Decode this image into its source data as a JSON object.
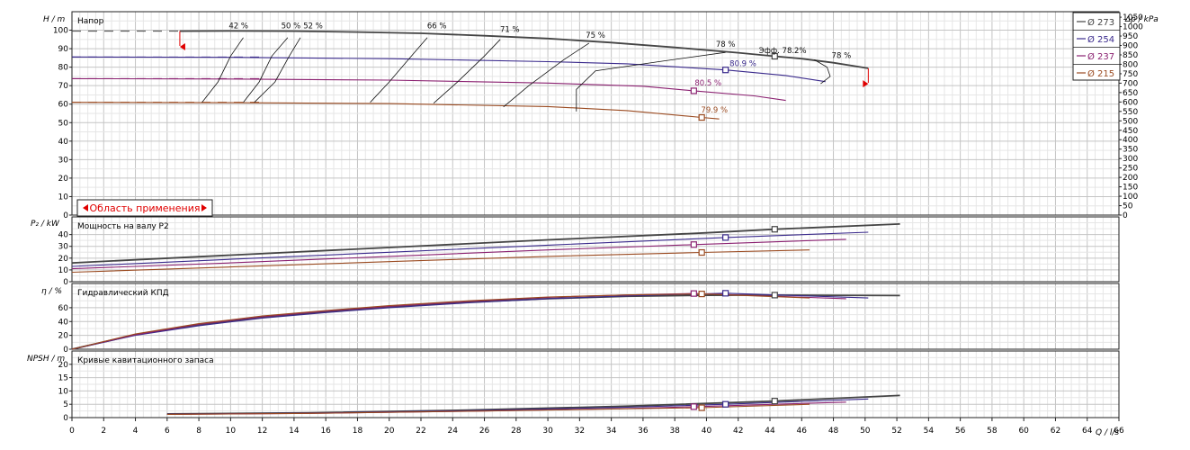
{
  "chart_data": [
    {
      "type": "line",
      "title": "Напор",
      "ylabel": "H / m",
      "ylabel_right": "Δp / kPa",
      "xlabel": "Q / l/s",
      "xlim": [
        0,
        66
      ],
      "ylim": [
        0,
        110
      ],
      "yticks": [
        0,
        10,
        20,
        30,
        40,
        50,
        60,
        70,
        80,
        90,
        100
      ],
      "yticks_right": [
        0,
        50,
        100,
        150,
        200,
        250,
        300,
        350,
        400,
        450,
        500,
        550,
        600,
        650,
        700,
        750,
        800,
        850,
        900,
        950,
        1000,
        1050
      ],
      "grid": true,
      "legend_position": "top-right",
      "series": [
        {
          "name": "Ø 273",
          "color": "#444444",
          "x": [
            6.8,
            10,
            14,
            18,
            22,
            26,
            30,
            34,
            38,
            42,
            44.3,
            46,
            48,
            50.2
          ],
          "y": [
            99.5,
            99.6,
            99.5,
            99,
            98.3,
            97,
            95.5,
            93.3,
            90.7,
            87.8,
            85.9,
            84.6,
            82.4,
            79.4
          ]
        },
        {
          "name": "Ø 254",
          "color": "#3a2a8c",
          "x": [
            0,
            10,
            20,
            30,
            35,
            41.2,
            45,
            47.5
          ],
          "y": [
            85.5,
            85.3,
            84.6,
            83,
            81.8,
            78.5,
            75.5,
            72.2
          ]
        },
        {
          "name": "Ø 237",
          "color": "#8a2070",
          "x": [
            0,
            10,
            20,
            30,
            36,
            39.2,
            43,
            45
          ],
          "y": [
            73.8,
            73.6,
            73,
            71.4,
            69.7,
            67.2,
            64.5,
            62
          ]
        },
        {
          "name": "Ø 215",
          "color": "#9a4a20",
          "x": [
            0,
            10,
            20,
            30,
            35,
            39.7,
            40.8
          ],
          "y": [
            61,
            60.8,
            60.3,
            58.7,
            56.5,
            52.8,
            52
          ]
        }
      ],
      "iso_efficiency_labels": [
        "42 %",
        "50 %",
        "52 %",
        "66 %",
        "71 %",
        "75 %",
        "78 %",
        "Эфф. 78.2%",
        "78 %"
      ],
      "curve_point_labels": [
        "80.9 %",
        "80.5 %",
        "79.9 %"
      ],
      "range_label": "Область применения"
    },
    {
      "type": "line",
      "title": "Мощность на валу P2",
      "ylabel": "P₂ / kW",
      "xlim": [
        0,
        66
      ],
      "ylim": [
        0,
        55
      ],
      "yticks": [
        0,
        10,
        20,
        30,
        40
      ],
      "series": [
        {
          "name": "Ø 273",
          "color": "#444444",
          "x": [
            0,
            10,
            20,
            30,
            40,
            44.3,
            52.2
          ],
          "y": [
            16,
            22.5,
            29,
            35.5,
            41.5,
            44.5,
            49
          ]
        },
        {
          "name": "Ø 254",
          "color": "#3a2a8c",
          "x": [
            0,
            10,
            20,
            30,
            41.2,
            50.2
          ],
          "y": [
            13,
            19,
            25,
            31,
            37.5,
            42
          ]
        },
        {
          "name": "Ø 237",
          "color": "#8a2070",
          "x": [
            0,
            10,
            20,
            30,
            39.2,
            48.8
          ],
          "y": [
            11,
            16,
            21.5,
            27,
            31.5,
            36
          ]
        },
        {
          "name": "Ø 215",
          "color": "#9a4a20",
          "x": [
            0,
            10,
            20,
            30,
            39.7,
            46.5
          ],
          "y": [
            8,
            12.5,
            17,
            21.5,
            24.8,
            27
          ]
        }
      ]
    },
    {
      "type": "line",
      "title": "Гидравлический КПД",
      "ylabel": "η / %",
      "xlim": [
        0,
        66
      ],
      "ylim": [
        0,
        95
      ],
      "yticks": [
        0,
        20,
        40,
        60
      ],
      "series": [
        {
          "name": "Ø 273",
          "color": "#444444",
          "x": [
            0,
            4,
            8,
            12,
            16,
            20,
            25,
            30,
            35,
            40,
            44.3,
            52.2
          ],
          "y": [
            0,
            21,
            35,
            46,
            54,
            61,
            68,
            73,
            76.5,
            78,
            78.2,
            77.5
          ]
        },
        {
          "name": "Ø 254",
          "color": "#3a2a8c",
          "x": [
            0,
            4,
            8,
            12,
            16,
            20,
            25,
            30,
            35,
            41.2,
            50.2
          ],
          "y": [
            0,
            20,
            34,
            45,
            53,
            60,
            67,
            73,
            77,
            80.9,
            74
          ]
        },
        {
          "name": "Ø 237",
          "color": "#8a2070",
          "x": [
            0,
            4,
            8,
            12,
            16,
            20,
            25,
            30,
            35,
            39.2,
            48.8
          ],
          "y": [
            0,
            21,
            36,
            47,
            55,
            62,
            69,
            75,
            78.5,
            80.5,
            73
          ]
        },
        {
          "name": "Ø 215",
          "color": "#9a4a20",
          "x": [
            0,
            4,
            8,
            12,
            16,
            20,
            25,
            30,
            35,
            39.7,
            46.5
          ],
          "y": [
            0,
            22,
            37,
            48,
            56,
            63,
            70,
            75.5,
            78.5,
            79.9,
            74
          ]
        }
      ]
    },
    {
      "type": "line",
      "title": "Кривые кавитационного запаса",
      "ylabel": "NPSH / m",
      "xlabel": "Q / l/s",
      "xlim": [
        0,
        66
      ],
      "ylim": [
        0,
        25
      ],
      "yticks": [
        0,
        5,
        10,
        15,
        20
      ],
      "xticks": [
        0,
        2,
        4,
        6,
        8,
        10,
        12,
        14,
        16,
        18,
        20,
        22,
        24,
        26,
        28,
        30,
        32,
        34,
        36,
        38,
        40,
        42,
        44,
        46,
        48,
        50,
        52,
        54,
        56,
        58,
        60,
        62,
        64,
        66
      ],
      "series": [
        {
          "name": "Ø 273",
          "color": "#444444",
          "x": [
            6,
            15,
            25,
            35,
            44.3,
            52.2
          ],
          "y": [
            1.4,
            1.8,
            2.8,
            4.3,
            6.2,
            8.3
          ]
        },
        {
          "name": "Ø 254",
          "color": "#3a2a8c",
          "x": [
            6,
            15,
            25,
            35,
            41.2,
            50.2
          ],
          "y": [
            1.3,
            1.7,
            2.6,
            3.9,
            5,
            7
          ]
        },
        {
          "name": "Ø 237",
          "color": "#8a2070",
          "x": [
            6,
            15,
            25,
            35,
            39.2,
            48.8
          ],
          "y": [
            1.2,
            1.6,
            2.4,
            3.4,
            4.1,
            5.8
          ]
        },
        {
          "name": "Ø 215",
          "color": "#9a4a20",
          "x": [
            6,
            15,
            25,
            35,
            39.7,
            46.5
          ],
          "y": [
            1.2,
            1.6,
            2.4,
            3.3,
            3.7,
            5
          ]
        }
      ]
    }
  ]
}
